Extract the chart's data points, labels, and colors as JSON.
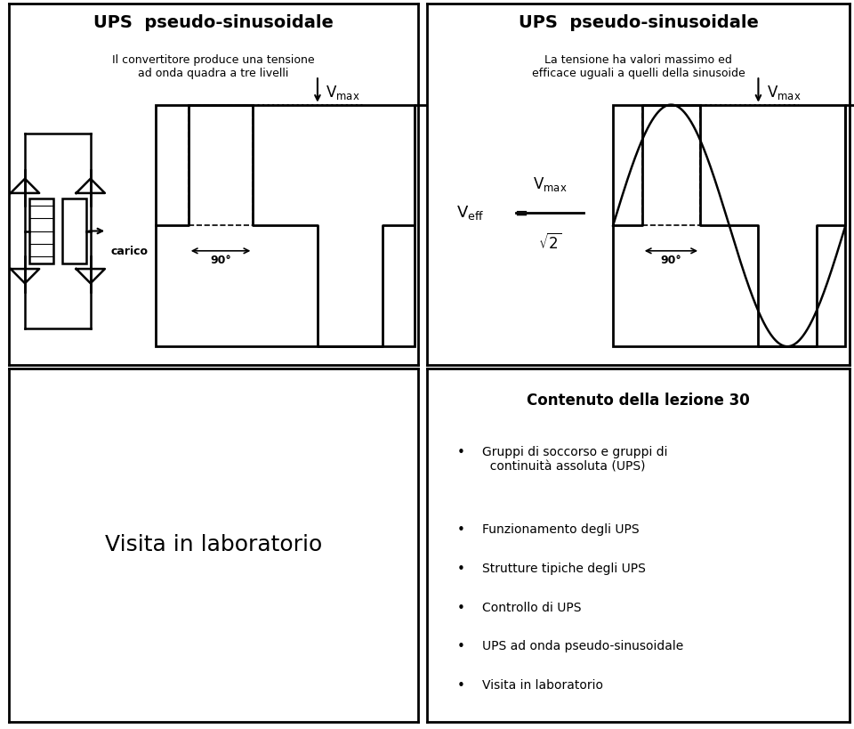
{
  "bg_color": "#ffffff",
  "border_color": "#000000",
  "panel_titles": [
    "UPS  pseudo-sinusoidale",
    "UPS  pseudo-sinusoidale"
  ],
  "panel_subtitles": [
    "Il convertitore produce una tensione\nad onda quadra a tre livelli",
    "La tensione ha valori massimo ed\nefficace uguali a quelli della sinusoide"
  ],
  "bottom_left_text": "Visita in laboratorio",
  "bottom_right_title": "Contenuto della lezione 30",
  "bottom_right_bullets": [
    "Gruppi di soccorso e gruppi di\n  continuità assoluta (UPS)",
    "Funzionamento degli UPS",
    "Strutture tipiche degli UPS",
    "Controllo di UPS",
    "UPS ad onda pseudo-sinusoidale",
    "Visita in laboratorio"
  ]
}
